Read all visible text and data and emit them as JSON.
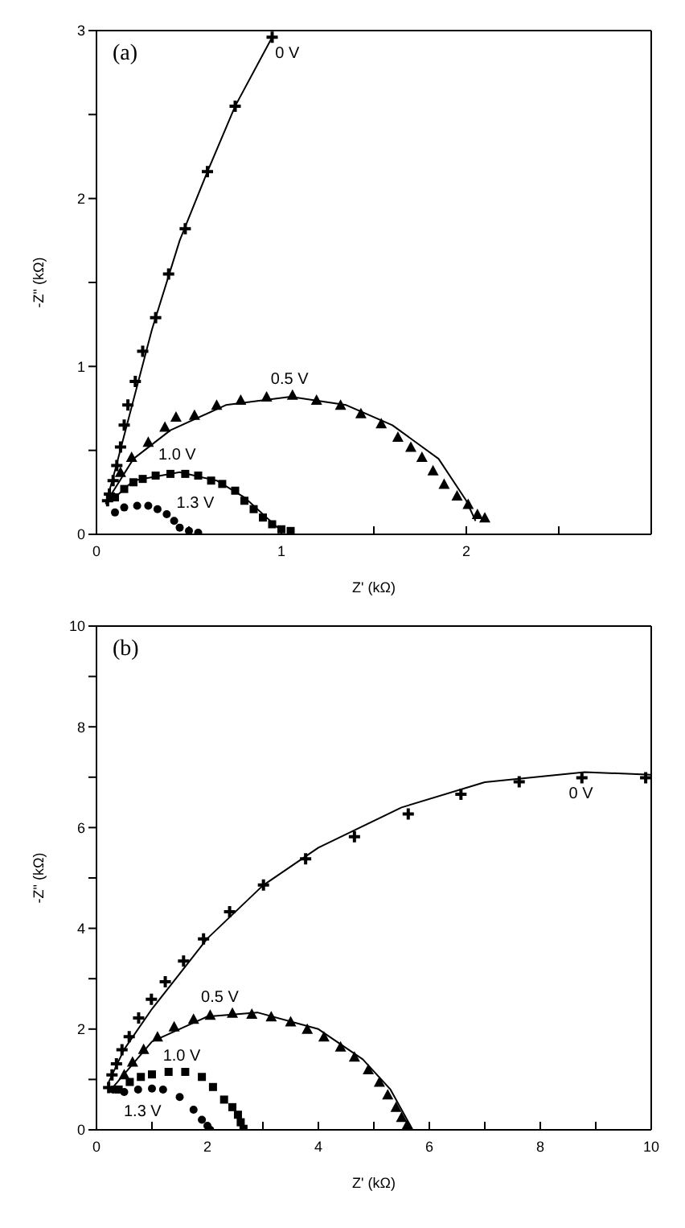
{
  "chart_data": [
    {
      "type": "scatter",
      "title": "(a)",
      "xlabel": "Z' (kΩ)",
      "ylabel": "-Z\" (kΩ)",
      "xlim": [
        0,
        3
      ],
      "ylim": [
        0,
        3
      ],
      "xticks": [
        0,
        {
          "value": 0.5,
          "label": null
        },
        1,
        {
          "value": 1.5,
          "label": null
        },
        2,
        {
          "value": 2.5,
          "label": null
        }
      ],
      "yticks": [
        0,
        {
          "value": 0.5,
          "label": null
        },
        1,
        {
          "value": 1.5,
          "label": null
        },
        2,
        {
          "value": 2.5,
          "label": null
        },
        3
      ],
      "grid": false,
      "legend": false,
      "series": [
        {
          "name": "0 V",
          "color": "#000000",
          "marker": "cross",
          "x": [
            0.06,
            0.07,
            0.09,
            0.11,
            0.13,
            0.15,
            0.17,
            0.21,
            0.25,
            0.32,
            0.39,
            0.48,
            0.6,
            0.75,
            0.95
          ],
          "values": [
            0.2,
            0.24,
            0.32,
            0.41,
            0.52,
            0.65,
            0.77,
            0.91,
            1.09,
            1.29,
            1.55,
            1.82,
            2.16,
            2.55,
            2.96
          ]
        },
        {
          "type": "line",
          "color": "#000000",
          "marker": "none",
          "x": [
            0.05,
            0.1,
            0.2,
            0.3,
            0.45,
            0.6,
            0.75,
            0.95
          ],
          "values": [
            0.18,
            0.38,
            0.8,
            1.22,
            1.75,
            2.16,
            2.55,
            2.96
          ]
        },
        {
          "name": "0.5 V",
          "color": "#000000",
          "marker": "triangle",
          "x": [
            0.13,
            0.19,
            0.28,
            0.37,
            0.43,
            0.53,
            0.65,
            0.78,
            0.92,
            1.06,
            1.19,
            1.32,
            1.43,
            1.54,
            1.63,
            1.7,
            1.76,
            1.82,
            1.88,
            1.95,
            2.01,
            2.06,
            2.1
          ],
          "values": [
            0.37,
            0.46,
            0.55,
            0.64,
            0.7,
            0.71,
            0.77,
            0.8,
            0.82,
            0.83,
            0.8,
            0.77,
            0.72,
            0.66,
            0.58,
            0.52,
            0.46,
            0.38,
            0.3,
            0.23,
            0.18,
            0.12,
            0.1
          ]
        },
        {
          "type": "line",
          "color": "#000000",
          "marker": "none",
          "x": [
            0.07,
            0.2,
            0.4,
            0.7,
            1.05,
            1.35,
            1.6,
            1.85,
            2.0,
            2.05
          ],
          "values": [
            0.22,
            0.45,
            0.62,
            0.77,
            0.82,
            0.77,
            0.65,
            0.45,
            0.2,
            0.08
          ]
        },
        {
          "name": "1.0 V",
          "color": "#000000",
          "marker": "square",
          "x": [
            0.1,
            0.15,
            0.2,
            0.25,
            0.32,
            0.4,
            0.48,
            0.55,
            0.62,
            0.68,
            0.75,
            0.8,
            0.85,
            0.9,
            0.95,
            1.0,
            1.05
          ],
          "values": [
            0.22,
            0.27,
            0.31,
            0.33,
            0.35,
            0.36,
            0.36,
            0.35,
            0.32,
            0.3,
            0.26,
            0.2,
            0.15,
            0.1,
            0.06,
            0.03,
            0.02
          ]
        },
        {
          "type": "line",
          "color": "#000000",
          "marker": "none",
          "x": [
            0.08,
            0.2,
            0.45,
            0.65,
            0.8,
            0.92,
            1.0
          ],
          "values": [
            0.2,
            0.32,
            0.37,
            0.32,
            0.22,
            0.1,
            0.02
          ]
        },
        {
          "name": "1.3 V",
          "color": "#000000",
          "marker": "circle",
          "x": [
            0.1,
            0.15,
            0.22,
            0.28,
            0.33,
            0.38,
            0.42,
            0.45,
            0.5,
            0.55
          ],
          "values": [
            0.13,
            0.16,
            0.17,
            0.17,
            0.15,
            0.12,
            0.08,
            0.04,
            0.02,
            0.01
          ]
        }
      ]
    },
    {
      "type": "scatter",
      "title": "(b)",
      "xlabel": "Z' (kΩ)",
      "ylabel": "-Z\" (kΩ)",
      "xlim": [
        0,
        10
      ],
      "ylim": [
        0,
        10
      ],
      "xticks": [
        0,
        {
          "value": 1,
          "label": null
        },
        2,
        {
          "value": 3,
          "label": null
        },
        4,
        {
          "value": 5,
          "label": null
        },
        6,
        {
          "value": 7,
          "label": null
        },
        8,
        {
          "value": 9,
          "label": null
        },
        10
      ],
      "yticks": [
        0,
        {
          "value": 1,
          "label": null
        },
        2,
        {
          "value": 3,
          "label": null
        },
        4,
        {
          "value": 5,
          "label": null
        },
        6,
        {
          "value": 7,
          "label": null
        },
        8,
        {
          "value": 9,
          "label": null
        },
        10
      ],
      "grid": false,
      "legend": false,
      "series": [
        {
          "name": "0 V",
          "color": "#000000",
          "marker": "cross",
          "x": [
            0.22,
            0.28,
            0.36,
            0.46,
            0.59,
            0.76,
            0.99,
            1.24,
            1.57,
            1.93,
            2.4,
            3.01,
            3.77,
            4.65,
            5.62,
            6.57,
            7.62,
            8.75,
            9.9
          ],
          "values": [
            0.84,
            1.09,
            1.31,
            1.59,
            1.85,
            2.22,
            2.59,
            2.94,
            3.35,
            3.79,
            4.33,
            4.86,
            5.38,
            5.82,
            6.27,
            6.66,
            6.91,
            6.99,
            6.99
          ]
        },
        {
          "type": "line",
          "color": "#000000",
          "marker": "none",
          "x": [
            0.2,
            0.5,
            1.0,
            2.0,
            3.0,
            4.0,
            5.5,
            7.0,
            8.8,
            10
          ],
          "values": [
            0.9,
            1.6,
            2.4,
            3.8,
            4.85,
            5.6,
            6.4,
            6.9,
            7.1,
            7.05
          ]
        },
        {
          "name": "0.5 V",
          "color": "#000000",
          "marker": "triangle",
          "x": [
            0.5,
            0.65,
            0.85,
            1.1,
            1.4,
            1.75,
            2.05,
            2.45,
            2.8,
            3.15,
            3.5,
            3.8,
            4.1,
            4.4,
            4.65,
            4.9,
            5.1,
            5.25,
            5.4,
            5.5,
            5.6
          ],
          "values": [
            1.1,
            1.35,
            1.6,
            1.85,
            2.05,
            2.2,
            2.28,
            2.32,
            2.3,
            2.25,
            2.15,
            2.0,
            1.85,
            1.65,
            1.45,
            1.2,
            0.95,
            0.7,
            0.45,
            0.25,
            0.1
          ]
        },
        {
          "type": "line",
          "color": "#000000",
          "marker": "none",
          "x": [
            0.3,
            1.0,
            2.0,
            2.9,
            4.0,
            4.8,
            5.3,
            5.6,
            5.7
          ],
          "values": [
            0.85,
            1.75,
            2.25,
            2.33,
            2.0,
            1.4,
            0.8,
            0.2,
            0
          ]
        },
        {
          "name": "1.0 V",
          "color": "#000000",
          "marker": "square",
          "x": [
            0.4,
            0.6,
            0.8,
            1.0,
            1.3,
            1.6,
            1.9,
            2.1,
            2.3,
            2.45,
            2.55,
            2.6,
            2.65
          ],
          "values": [
            0.8,
            0.95,
            1.05,
            1.1,
            1.15,
            1.15,
            1.05,
            0.85,
            0.6,
            0.45,
            0.3,
            0.15,
            0.02
          ]
        },
        {
          "name": "1.3 V",
          "color": "#000000",
          "marker": "circle",
          "x": [
            0.3,
            0.5,
            0.75,
            1.0,
            1.2,
            1.5,
            1.75,
            1.9,
            2.0,
            2.05
          ],
          "values": [
            0.8,
            0.75,
            0.8,
            0.82,
            0.8,
            0.65,
            0.4,
            0.2,
            0.08,
            0
          ]
        }
      ]
    }
  ]
}
